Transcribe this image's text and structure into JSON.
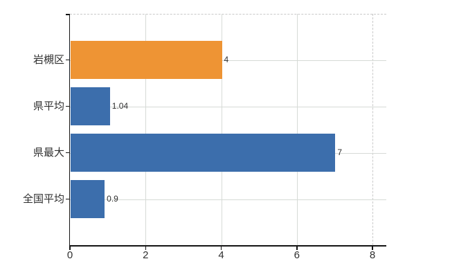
{
  "chart_data": {
    "type": "bar",
    "orientation": "horizontal",
    "title": "",
    "xlabel": "",
    "ylabel": "",
    "categories": [
      "岩槻区",
      "県平均",
      "県最大",
      "全国平均"
    ],
    "values": [
      4,
      1.04,
      7,
      0.9
    ],
    "value_labels": [
      "4",
      "1.04",
      "7",
      "0.9"
    ],
    "bar_colors": [
      "#EE9434",
      "#3C6EAC",
      "#3C6EAC",
      "#3C6EAC"
    ],
    "xlim": [
      0,
      8
    ],
    "x_ticks": [
      0,
      2,
      4,
      6,
      8
    ],
    "x_tick_labels": [
      "0",
      "2",
      "4",
      "6",
      "8"
    ],
    "grid": true,
    "legend": false
  },
  "colors": {
    "highlight_bar": "#EE9434",
    "default_bar": "#3C6EAC",
    "axis": "#141414",
    "gridline": "#d6dad6",
    "dashed_line": "#c9c9c9",
    "text": "#2f2f2f",
    "background": "#ffffff"
  }
}
